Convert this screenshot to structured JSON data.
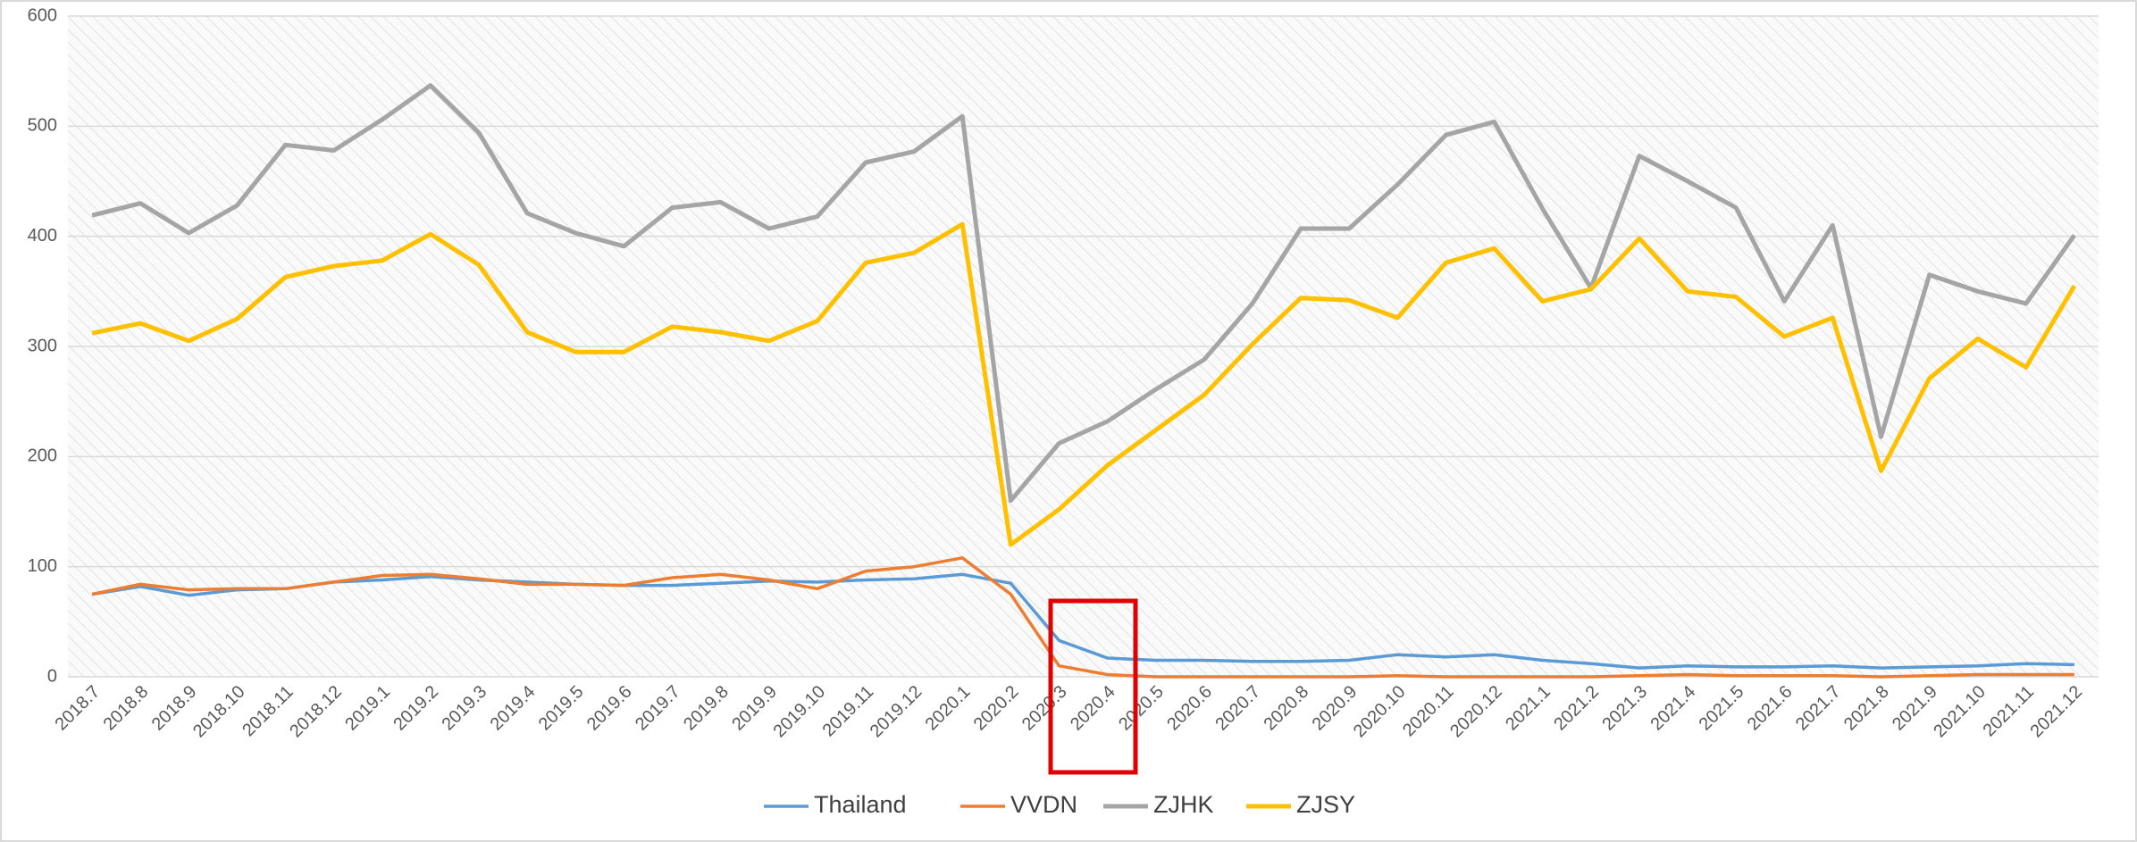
{
  "chart_data": {
    "type": "line",
    "categories": [
      "2018.7",
      "2018.8",
      "2018.9",
      "2018.10",
      "2018.11",
      "2018.12",
      "2019.1",
      "2019.2",
      "2019.3",
      "2019.4",
      "2019.5",
      "2019.6",
      "2019.7",
      "2019.8",
      "2019.9",
      "2019.10",
      "2019.11",
      "2019.12",
      "2020.1",
      "2020.2",
      "2020.3",
      "2020.4",
      "2020.5",
      "2020.6",
      "2020.7",
      "2020.8",
      "2020.9",
      "2020.10",
      "2020.11",
      "2020.12",
      "2021.1",
      "2021.2",
      "2021.3",
      "2021.4",
      "2021.5",
      "2021.6",
      "2021.7",
      "2021.8",
      "2021.9",
      "2021.10",
      "2021.11",
      "2021.12"
    ],
    "series": [
      {
        "name": "Thailand",
        "color": "#5b9bd5",
        "values": [
          75,
          82,
          74,
          79,
          80,
          86,
          88,
          91,
          88,
          86,
          84,
          83,
          83,
          85,
          87,
          86,
          88,
          89,
          93,
          85,
          33,
          17,
          15,
          15,
          14,
          14,
          15,
          20,
          18,
          20,
          15,
          12,
          8,
          10,
          9,
          9,
          10,
          8,
          9,
          10,
          12,
          11
        ]
      },
      {
        "name": "VVDN",
        "color": "#ed7d31",
        "values": [
          75,
          84,
          79,
          80,
          80,
          86,
          92,
          93,
          89,
          84,
          84,
          83,
          90,
          93,
          88,
          80,
          96,
          100,
          108,
          75,
          10,
          2,
          0,
          0,
          0,
          0,
          0,
          1,
          0,
          0,
          0,
          0,
          1,
          2,
          1,
          1,
          1,
          0,
          1,
          2,
          2,
          2
        ]
      },
      {
        "name": "ZJHK",
        "color": "#a5a5a5",
        "values": [
          419,
          430,
          403,
          428,
          483,
          478,
          506,
          537,
          494,
          421,
          403,
          391,
          426,
          431,
          407,
          418,
          467,
          477,
          509,
          160,
          212,
          232,
          261,
          288,
          339,
          407,
          407,
          447,
          492,
          504,
          425,
          353,
          473,
          450,
          426,
          341,
          410,
          218,
          365,
          350,
          339,
          401
        ]
      },
      {
        "name": "ZJSY",
        "color": "#ffc000",
        "values": [
          312,
          321,
          305,
          325,
          363,
          373,
          378,
          402,
          374,
          313,
          295,
          295,
          318,
          313,
          305,
          323,
          376,
          385,
          411,
          120,
          152,
          192,
          224,
          256,
          302,
          344,
          342,
          326,
          376,
          389,
          341,
          352,
          398,
          350,
          345,
          309,
          326,
          187,
          271,
          307,
          281,
          355
        ]
      }
    ],
    "ylim": [
      0,
      600
    ],
    "yticks": [
      0,
      100,
      200,
      300,
      400,
      500,
      600
    ],
    "grid": true,
    "legend": "bottom"
  }
}
